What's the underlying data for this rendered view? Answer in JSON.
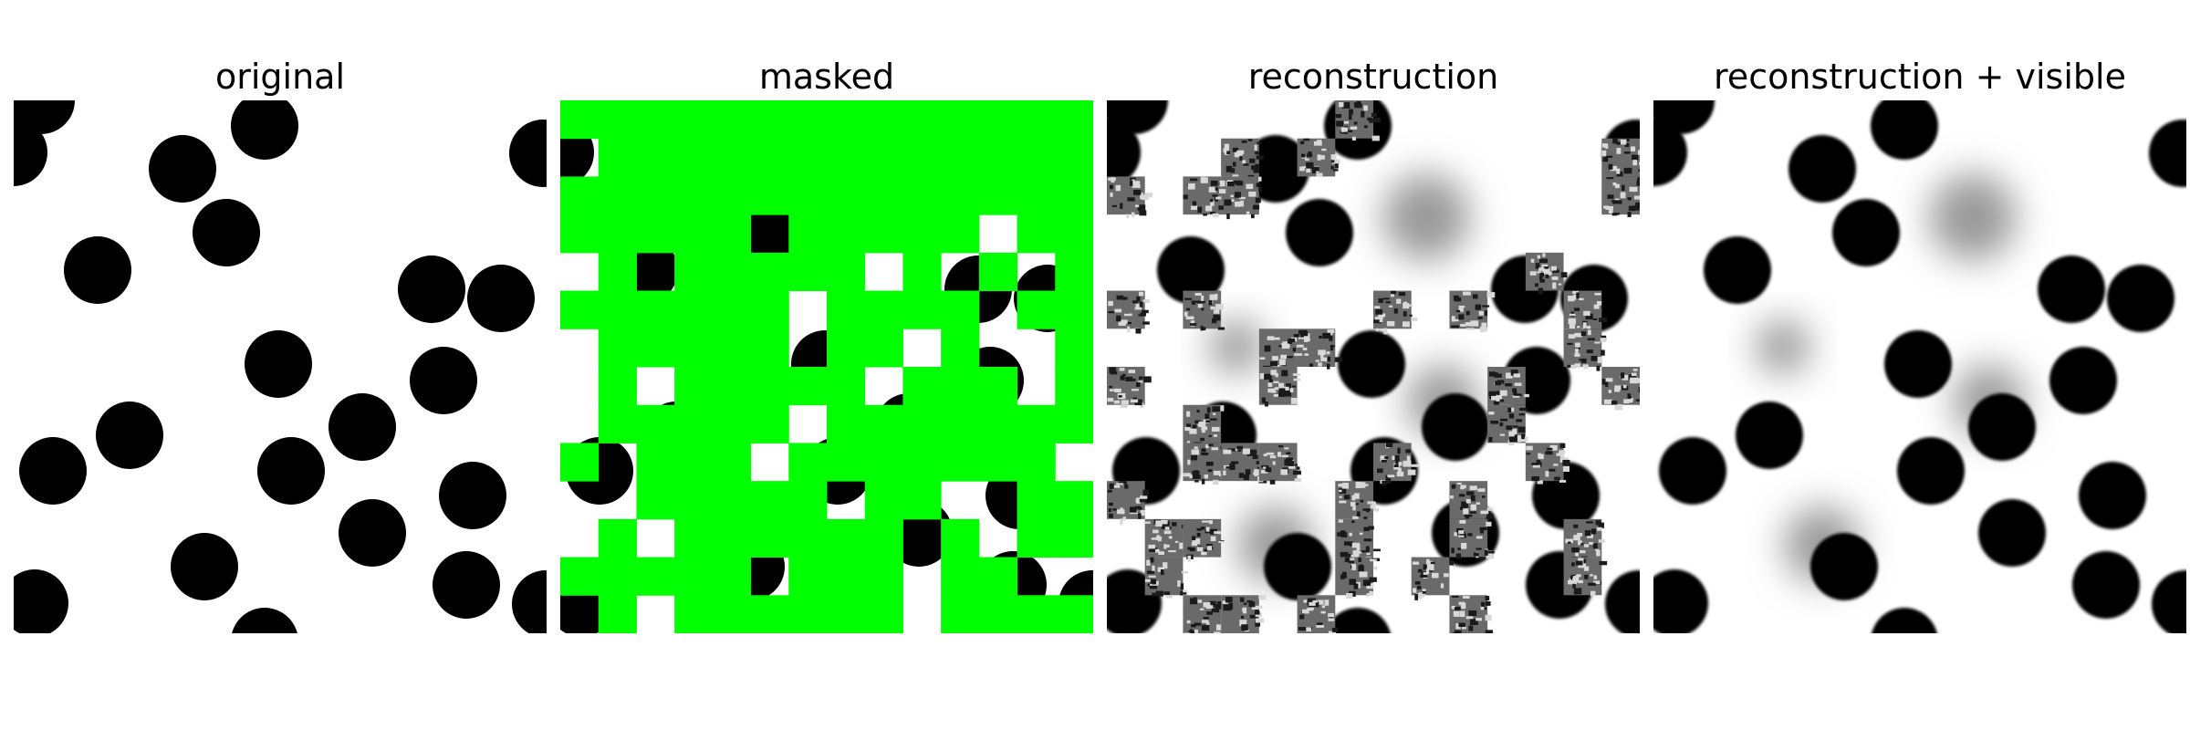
{
  "panels": [
    {
      "title": "original"
    },
    {
      "title": "masked"
    },
    {
      "title": "reconstruction"
    },
    {
      "title": "reconstruction + visible"
    }
  ],
  "colors": {
    "mask": "#00ff00",
    "disc": "#000000",
    "background": "#ffffff",
    "blur": "#9a9a9a",
    "noise_light": "#d8d8d8",
    "noise_dark": "#1a1a1a"
  }
}
